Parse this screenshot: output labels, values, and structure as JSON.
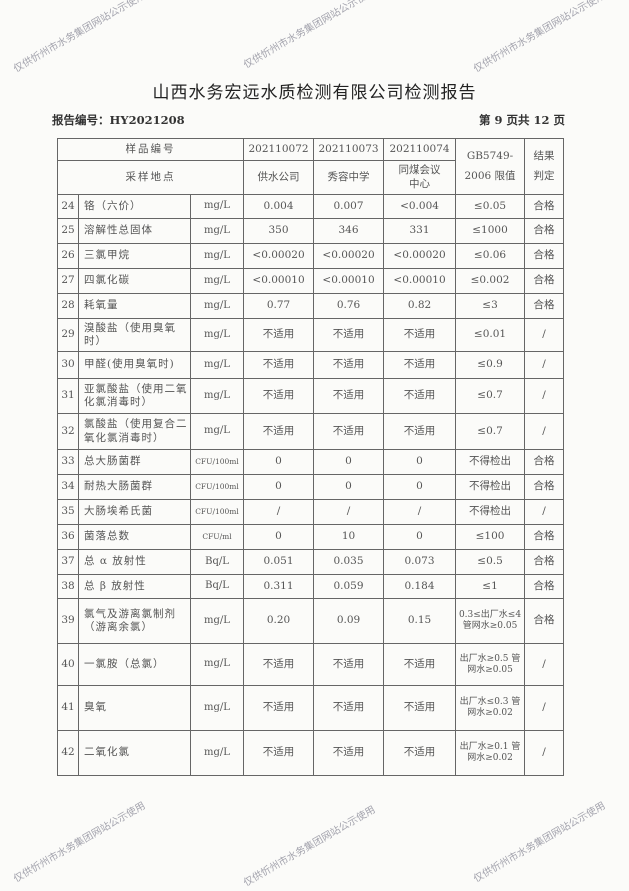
{
  "title": "山西水务宏远水质检测有限公司检测报告",
  "report_no": "报告编号：HY2021208",
  "page_no": "第 9 页共 12 页",
  "watermark": "仅供忻州市水务集团网站公示使用",
  "header": {
    "sample_no_label": "样品编号",
    "sample_nos": [
      "202110072",
      "202110073",
      "202110074"
    ],
    "site_label": "采样地点",
    "sites": [
      "供水公司",
      "秀容中学",
      "同煤会议中心"
    ],
    "limit_label_1": "GB5749-",
    "limit_label_2": "2006 限值",
    "result_label_1": "结果",
    "result_label_2": "判定"
  },
  "rows": [
    {
      "no": "24",
      "item": "铬（六价）",
      "unit": "mg/L",
      "values": [
        "0.004",
        "0.007",
        "<0.004"
      ],
      "limit": "≤0.05",
      "result": "合格"
    },
    {
      "no": "25",
      "item": "溶解性总固体",
      "unit": "mg/L",
      "values": [
        "350",
        "346",
        "331"
      ],
      "limit": "≤1000",
      "result": "合格"
    },
    {
      "no": "26",
      "item": "三氯甲烷",
      "unit": "mg/L",
      "values": [
        "<0.00020",
        "<0.00020",
        "<0.00020"
      ],
      "limit": "≤0.06",
      "result": "合格"
    },
    {
      "no": "27",
      "item": "四氯化碳",
      "unit": "mg/L",
      "values": [
        "<0.00010",
        "<0.00010",
        "<0.00010"
      ],
      "limit": "≤0.002",
      "result": "合格"
    },
    {
      "no": "28",
      "item": "耗氧量",
      "unit": "mg/L",
      "values": [
        "0.77",
        "0.76",
        "0.82"
      ],
      "limit": "≤3",
      "result": "合格"
    },
    {
      "no": "29",
      "item": "溴酸盐（使用臭氧时）",
      "unit": "mg/L",
      "values": [
        "不适用",
        "不适用",
        "不适用"
      ],
      "limit": "≤0.01",
      "result": "/"
    },
    {
      "no": "30",
      "item": "甲醛(使用臭氧时)",
      "unit": "mg/L",
      "values": [
        "不适用",
        "不适用",
        "不适用"
      ],
      "limit": "≤0.9",
      "result": "/"
    },
    {
      "no": "31",
      "item": "亚氯酸盐（使用二氧化氯消毒时）",
      "unit": "mg/L",
      "values": [
        "不适用",
        "不适用",
        "不适用"
      ],
      "limit": "≤0.7",
      "result": "/"
    },
    {
      "no": "32",
      "item": "氯酸盐（使用复合二氧化氯消毒时）",
      "unit": "mg/L",
      "values": [
        "不适用",
        "不适用",
        "不适用"
      ],
      "limit": "≤0.7",
      "result": "/"
    },
    {
      "no": "33",
      "item": "总大肠菌群",
      "unit": "CFU/100ml",
      "values": [
        "0",
        "0",
        "0"
      ],
      "limit": "不得检出",
      "result": "合格"
    },
    {
      "no": "34",
      "item": "耐热大肠菌群",
      "unit": "CFU/100ml",
      "values": [
        "0",
        "0",
        "0"
      ],
      "limit": "不得检出",
      "result": "合格"
    },
    {
      "no": "35",
      "item": "大肠埃希氏菌",
      "unit": "CFU/100ml",
      "values": [
        "/",
        "/",
        "/"
      ],
      "limit": "不得检出",
      "result": "/"
    },
    {
      "no": "36",
      "item": "菌落总数",
      "unit": "CFU/ml",
      "values": [
        "0",
        "10",
        "0"
      ],
      "limit": "≤100",
      "result": "合格"
    },
    {
      "no": "37",
      "item": "总 α 放射性",
      "unit": "Bq/L",
      "values": [
        "0.051",
        "0.035",
        "0.073"
      ],
      "limit": "≤0.5",
      "result": "合格"
    },
    {
      "no": "38",
      "item": "总 β 放射性",
      "unit": "Bq/L",
      "values": [
        "0.311",
        "0.059",
        "0.184"
      ],
      "limit": "≤1",
      "result": "合格"
    },
    {
      "no": "39",
      "item": "氯气及游离氯制剂（游离余氯）",
      "unit": "mg/L",
      "values": [
        "0.20",
        "0.09",
        "0.15"
      ],
      "limit": "0.3≤出厂水≤4 管网水≥0.05",
      "result": "合格"
    },
    {
      "no": "40",
      "item": "一氯胺（总氯）",
      "unit": "mg/L",
      "values": [
        "不适用",
        "不适用",
        "不适用"
      ],
      "limit": "出厂水≥0.5 管网水≥0.05",
      "result": "/"
    },
    {
      "no": "41",
      "item": "臭氧",
      "unit": "mg/L",
      "values": [
        "不适用",
        "不适用",
        "不适用"
      ],
      "limit": "出厂水≤0.3 管网水≥0.02",
      "result": "/"
    },
    {
      "no": "42",
      "item": "二氧化氯",
      "unit": "mg/L",
      "values": [
        "不适用",
        "不适用",
        "不适用"
      ],
      "limit": "出厂水≥0.1 管网水≥0.02",
      "result": "/"
    }
  ]
}
